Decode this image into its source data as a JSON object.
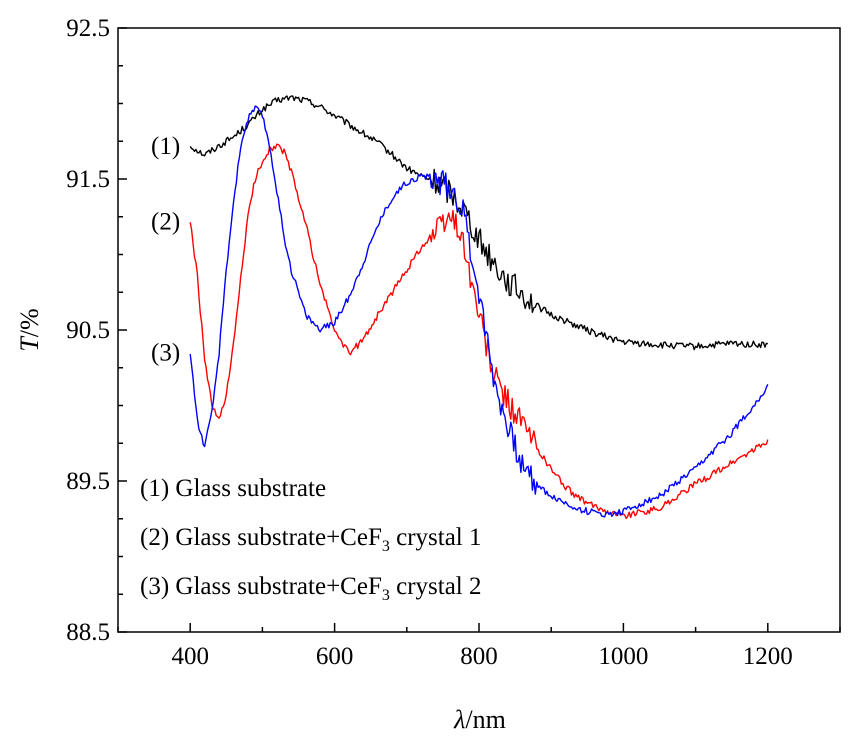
{
  "chart_data": {
    "type": "line",
    "xlabel": {
      "symbol": "λ",
      "unit": "/nm"
    },
    "ylabel": {
      "symbol": "T",
      "unit": "/%"
    },
    "xlim": [
      300,
      1300
    ],
    "ylim": [
      88.5,
      92.5
    ],
    "xticks": [
      400,
      600,
      800,
      1000,
      1200
    ],
    "yticks": [
      "88.5",
      "89.5",
      "90.5",
      "91.5",
      "92.5"
    ],
    "grid": false,
    "series": [
      {
        "label": "(1)",
        "color": "#000000",
        "x": [
          400,
          420,
          440,
          460,
          480,
          500,
          520,
          540,
          560,
          580,
          600,
          620,
          640,
          660,
          680,
          700,
          720,
          740,
          760,
          780,
          800,
          820,
          840,
          860,
          880,
          900,
          920,
          940,
          960,
          980,
          1000,
          1050,
          1100,
          1150,
          1200
        ],
        "y": [
          91.72,
          91.66,
          91.72,
          91.78,
          91.86,
          91.96,
          92.02,
          92.04,
          92.02,
          91.98,
          91.92,
          91.86,
          91.8,
          91.74,
          91.66,
          91.57,
          91.52,
          91.48,
          91.42,
          91.3,
          91.1,
          90.95,
          90.82,
          90.74,
          90.66,
          90.6,
          90.56,
          90.52,
          90.48,
          90.45,
          90.42,
          90.4,
          90.39,
          90.41,
          90.4
        ]
      },
      {
        "label": "(2)",
        "color": "#ff0000",
        "x": [
          400,
          410,
          420,
          430,
          440,
          450,
          460,
          470,
          480,
          490,
          500,
          510,
          520,
          530,
          540,
          560,
          580,
          600,
          620,
          640,
          660,
          680,
          700,
          720,
          740,
          760,
          770,
          780,
          790,
          800,
          820,
          840,
          860,
          880,
          900,
          920,
          940,
          960,
          980,
          1000,
          1050,
          1100,
          1150,
          1200
        ],
        "y": [
          91.22,
          90.85,
          90.3,
          90.0,
          89.9,
          90.06,
          90.4,
          90.85,
          91.25,
          91.5,
          91.62,
          91.7,
          91.72,
          91.68,
          91.55,
          91.2,
          90.8,
          90.5,
          90.34,
          90.44,
          90.6,
          90.75,
          90.9,
          91.05,
          91.15,
          91.25,
          91.2,
          91.05,
          90.8,
          90.6,
          90.2,
          90.02,
          89.88,
          89.72,
          89.58,
          89.46,
          89.38,
          89.33,
          89.3,
          89.27,
          89.32,
          89.48,
          89.62,
          89.76
        ]
      },
      {
        "label": "(3)",
        "color": "#0000ff",
        "x": [
          400,
          410,
          420,
          430,
          440,
          450,
          460,
          470,
          480,
          490,
          500,
          510,
          520,
          530,
          540,
          560,
          580,
          600,
          620,
          640,
          660,
          680,
          700,
          720,
          740,
          760,
          770,
          780,
          790,
          800,
          820,
          840,
          860,
          880,
          900,
          920,
          940,
          960,
          980,
          1000,
          1050,
          1100,
          1150,
          1200
        ],
        "y": [
          90.35,
          89.9,
          89.72,
          89.95,
          90.35,
          90.9,
          91.35,
          91.72,
          91.9,
          91.97,
          91.92,
          91.72,
          91.42,
          91.12,
          90.9,
          90.6,
          90.5,
          90.55,
          90.72,
          90.95,
          91.2,
          91.38,
          91.48,
          91.52,
          91.5,
          91.45,
          91.38,
          91.25,
          91.0,
          90.75,
          90.2,
          89.85,
          89.6,
          89.48,
          89.4,
          89.35,
          89.31,
          89.29,
          89.28,
          89.3,
          89.4,
          89.58,
          89.82,
          90.12
        ]
      }
    ],
    "legend": {
      "placement": "bottom-left",
      "entries": [
        {
          "prefix": "(1) Glass substrate",
          "sub": "",
          "suffix": ""
        },
        {
          "prefix": "(2) Glass substrate+CeF",
          "sub": "3",
          "suffix": " crystal 1"
        },
        {
          "prefix": "(3) Glass substrate+CeF",
          "sub": "3",
          "suffix": " crystal 2"
        }
      ]
    }
  }
}
